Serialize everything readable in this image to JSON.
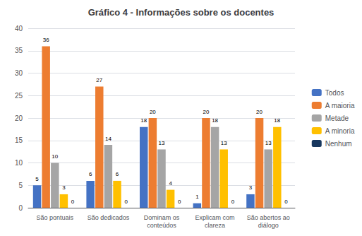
{
  "chart_data": {
    "type": "bar",
    "title": "Gráfico 4 - Informações sobre os docentes",
    "categories": [
      "São pontuais",
      "São dedicados",
      "Dominam os\nconteúdos",
      "Explicam com\nclareza",
      "São abertos ao\ndiálogo"
    ],
    "series": [
      {
        "name": "Todos",
        "color": "#4472C4",
        "values": [
          5,
          6,
          18,
          1,
          3
        ]
      },
      {
        "name": "A maioria",
        "color": "#ED7D31",
        "values": [
          36,
          27,
          20,
          20,
          20
        ]
      },
      {
        "name": "Metade",
        "color": "#A5A5A5",
        "values": [
          10,
          14,
          13,
          18,
          13
        ]
      },
      {
        "name": "A minoria",
        "color": "#FFC000",
        "values": [
          3,
          6,
          4,
          13,
          18
        ]
      },
      {
        "name": "Nenhum",
        "color": "#17375E",
        "values": [
          0,
          0,
          0,
          0,
          0
        ]
      }
    ],
    "ylim": [
      0,
      40
    ],
    "yticks": [
      0,
      5,
      10,
      15,
      20,
      25,
      30,
      35,
      40
    ],
    "grid": true,
    "legend": "right",
    "data_labels": true
  }
}
